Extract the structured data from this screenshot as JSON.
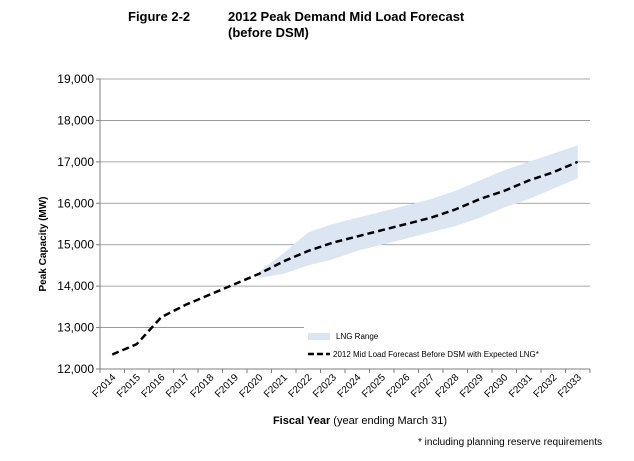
{
  "figure": {
    "number": "Figure 2-2",
    "title_line1": "2012 Peak Demand Mid Load Forecast",
    "title_line2": "(before DSM)",
    "footnote": "* including planning reserve requirements"
  },
  "chart_data": {
    "type": "line",
    "title": "2012 Peak Demand Mid Load Forecast (before DSM)",
    "xlabel_bold": "Fiscal Year",
    "xlabel_rest": " (year ending March 31)",
    "ylabel": "Peak Capacity (MW)",
    "ylim": [
      12000,
      19000
    ],
    "yticks": [
      12000,
      13000,
      14000,
      15000,
      16000,
      17000,
      18000,
      19000
    ],
    "ytick_labels": [
      "12,000",
      "13,000",
      "14,000",
      "15,000",
      "16,000",
      "17,000",
      "18,000",
      "19,000"
    ],
    "grid": "horizontal",
    "legend_position": "bottom-right",
    "categories": [
      "F2014",
      "F2015",
      "F2016",
      "F2017",
      "F2018",
      "F2019",
      "F2020",
      "F2021",
      "F2022",
      "F2023",
      "F2024",
      "F2025",
      "F2026",
      "F2027",
      "F2028",
      "F2029",
      "F2030",
      "F2031",
      "F2032",
      "F2033"
    ],
    "series": [
      {
        "name": "2012 Mid Load Forecast Before DSM with Expected LNG*",
        "style": "dashed",
        "color": "#000000",
        "values": [
          12350,
          12600,
          13250,
          13550,
          13800,
          14050,
          14300,
          14600,
          14850,
          15050,
          15200,
          15350,
          15500,
          15650,
          15850,
          16100,
          16300,
          16550,
          16750,
          17000
        ]
      }
    ],
    "band": {
      "name": "LNG Range",
      "color": "#dce6f2",
      "start_index": 6,
      "lower": [
        14200,
        14300,
        14500,
        14650,
        14850,
        15000,
        15150,
        15300,
        15450,
        15650,
        15900,
        16100,
        16350,
        16600
      ],
      "upper": [
        14350,
        14800,
        15300,
        15500,
        15650,
        15800,
        15950,
        16100,
        16300,
        16550,
        16800,
        17000,
        17200,
        17400
      ]
    }
  }
}
